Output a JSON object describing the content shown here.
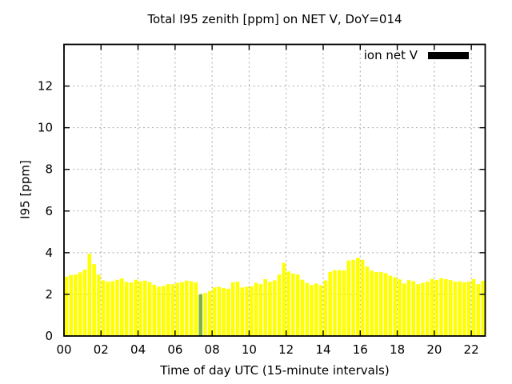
{
  "window": {
    "background": "#ffffff"
  },
  "chart_data": {
    "type": "bar",
    "title": "Total I95 zenith [ppm] on NET V, DoY=014",
    "xlabel": "Time of day UTC (15-minute intervals)",
    "ylabel": "I95 [ppm]",
    "legend": {
      "label": "ion net V",
      "swatch_color": "#000000",
      "position": "top-right-inside"
    },
    "grid": true,
    "xlim": [
      0,
      22.75
    ],
    "ylim": [
      0,
      14
    ],
    "x_ticks": {
      "values": [
        0,
        2,
        4,
        6,
        8,
        10,
        12,
        14,
        16,
        18,
        20,
        22
      ],
      "labels": [
        "00",
        "02",
        "04",
        "06",
        "08",
        "10",
        "12",
        "14",
        "16",
        "18",
        "20",
        "22"
      ]
    },
    "y_ticks": [
      0,
      2,
      4,
      6,
      8,
      10,
      12
    ],
    "interval_minutes": 15,
    "series_name": "ion net V",
    "times": [
      "00:00",
      "00:15",
      "00:30",
      "00:45",
      "01:00",
      "01:15",
      "01:30",
      "01:45",
      "02:00",
      "02:15",
      "02:30",
      "02:45",
      "03:00",
      "03:15",
      "03:30",
      "03:45",
      "04:00",
      "04:15",
      "04:30",
      "04:45",
      "05:00",
      "05:15",
      "05:30",
      "05:45",
      "06:00",
      "06:15",
      "06:30",
      "06:45",
      "07:00",
      "07:15",
      "07:30",
      "07:45",
      "08:00",
      "08:15",
      "08:30",
      "08:45",
      "09:00",
      "09:15",
      "09:30",
      "09:45",
      "10:00",
      "10:15",
      "10:30",
      "10:45",
      "11:00",
      "11:15",
      "11:30",
      "11:45",
      "12:00",
      "12:15",
      "12:30",
      "12:45",
      "13:00",
      "13:15",
      "13:30",
      "13:45",
      "14:00",
      "14:15",
      "14:30",
      "14:45",
      "15:00",
      "15:15",
      "15:30",
      "15:45",
      "16:00",
      "16:15",
      "16:30",
      "16:45",
      "17:00",
      "17:15",
      "17:30",
      "17:45",
      "18:00",
      "18:15",
      "18:30",
      "18:45",
      "19:00",
      "19:15",
      "19:30",
      "19:45",
      "20:00",
      "20:15",
      "20:30",
      "20:45",
      "21:00",
      "21:15",
      "21:30",
      "21:45",
      "22:00",
      "22:15",
      "22:30"
    ],
    "values": [
      2.85,
      2.93,
      2.95,
      3.06,
      3.19,
      3.94,
      3.45,
      2.95,
      2.67,
      2.61,
      2.63,
      2.7,
      2.76,
      2.6,
      2.57,
      2.7,
      2.63,
      2.66,
      2.59,
      2.46,
      2.37,
      2.4,
      2.49,
      2.49,
      2.55,
      2.59,
      2.66,
      2.63,
      2.57,
      2.0,
      2.07,
      2.16,
      2.33,
      2.36,
      2.3,
      2.27,
      2.58,
      2.61,
      2.33,
      2.37,
      2.38,
      2.55,
      2.49,
      2.73,
      2.6,
      2.67,
      2.95,
      3.51,
      3.1,
      3.0,
      2.95,
      2.7,
      2.55,
      2.45,
      2.52,
      2.44,
      2.67,
      3.08,
      3.16,
      3.16,
      3.15,
      3.62,
      3.66,
      3.75,
      3.66,
      3.33,
      3.14,
      3.07,
      3.07,
      3.02,
      2.9,
      2.82,
      2.72,
      2.52,
      2.68,
      2.63,
      2.49,
      2.55,
      2.61,
      2.74,
      2.69,
      2.77,
      2.73,
      2.69,
      2.61,
      2.62,
      2.58,
      2.62,
      2.73,
      2.49,
      2.65
    ],
    "highlight": {
      "index": 29,
      "time": "07:15",
      "color": "#7cb342"
    },
    "colors": {
      "bar": "#ffff00",
      "highlight": "#7cb342",
      "grid": "#aaaaaa",
      "axis": "#000000",
      "text": "#000000"
    }
  }
}
